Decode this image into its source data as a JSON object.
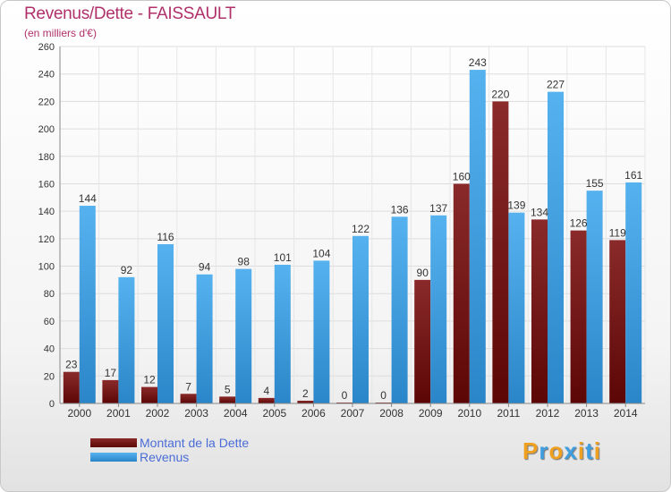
{
  "chart_data": {
    "type": "bar",
    "title": "Revenus/Dette - FAISSAULT",
    "subtitle": "(en milliers d'€)",
    "categories": [
      "2000",
      "2001",
      "2002",
      "2003",
      "2004",
      "2005",
      "2006",
      "2007",
      "2008",
      "2009",
      "2010",
      "2011",
      "2012",
      "2013",
      "2014"
    ],
    "series": [
      {
        "name": "Montant de la Dette",
        "color": "#7a1515",
        "values": [
          23,
          17,
          12,
          7,
          5,
          4,
          2,
          0,
          0,
          90,
          160,
          220,
          134,
          126,
          119
        ]
      },
      {
        "name": "Revenus",
        "color": "#3f9ee0",
        "values": [
          144,
          92,
          116,
          94,
          98,
          101,
          104,
          122,
          136,
          137,
          243,
          139,
          227,
          155,
          161
        ]
      }
    ],
    "ylim": [
      0,
      260
    ],
    "yticks": [
      0,
      20,
      40,
      60,
      80,
      100,
      120,
      140,
      160,
      180,
      200,
      220,
      240,
      260
    ],
    "grid": true,
    "legend_position": "bottom-left"
  },
  "logo": {
    "text": "Proxiti",
    "letter_colors": [
      "#f0a020",
      "#3f9ee0",
      "#f0a020",
      "#3f9ee0",
      "#f0a020",
      "#3f9ee0",
      "#f0a020"
    ]
  }
}
